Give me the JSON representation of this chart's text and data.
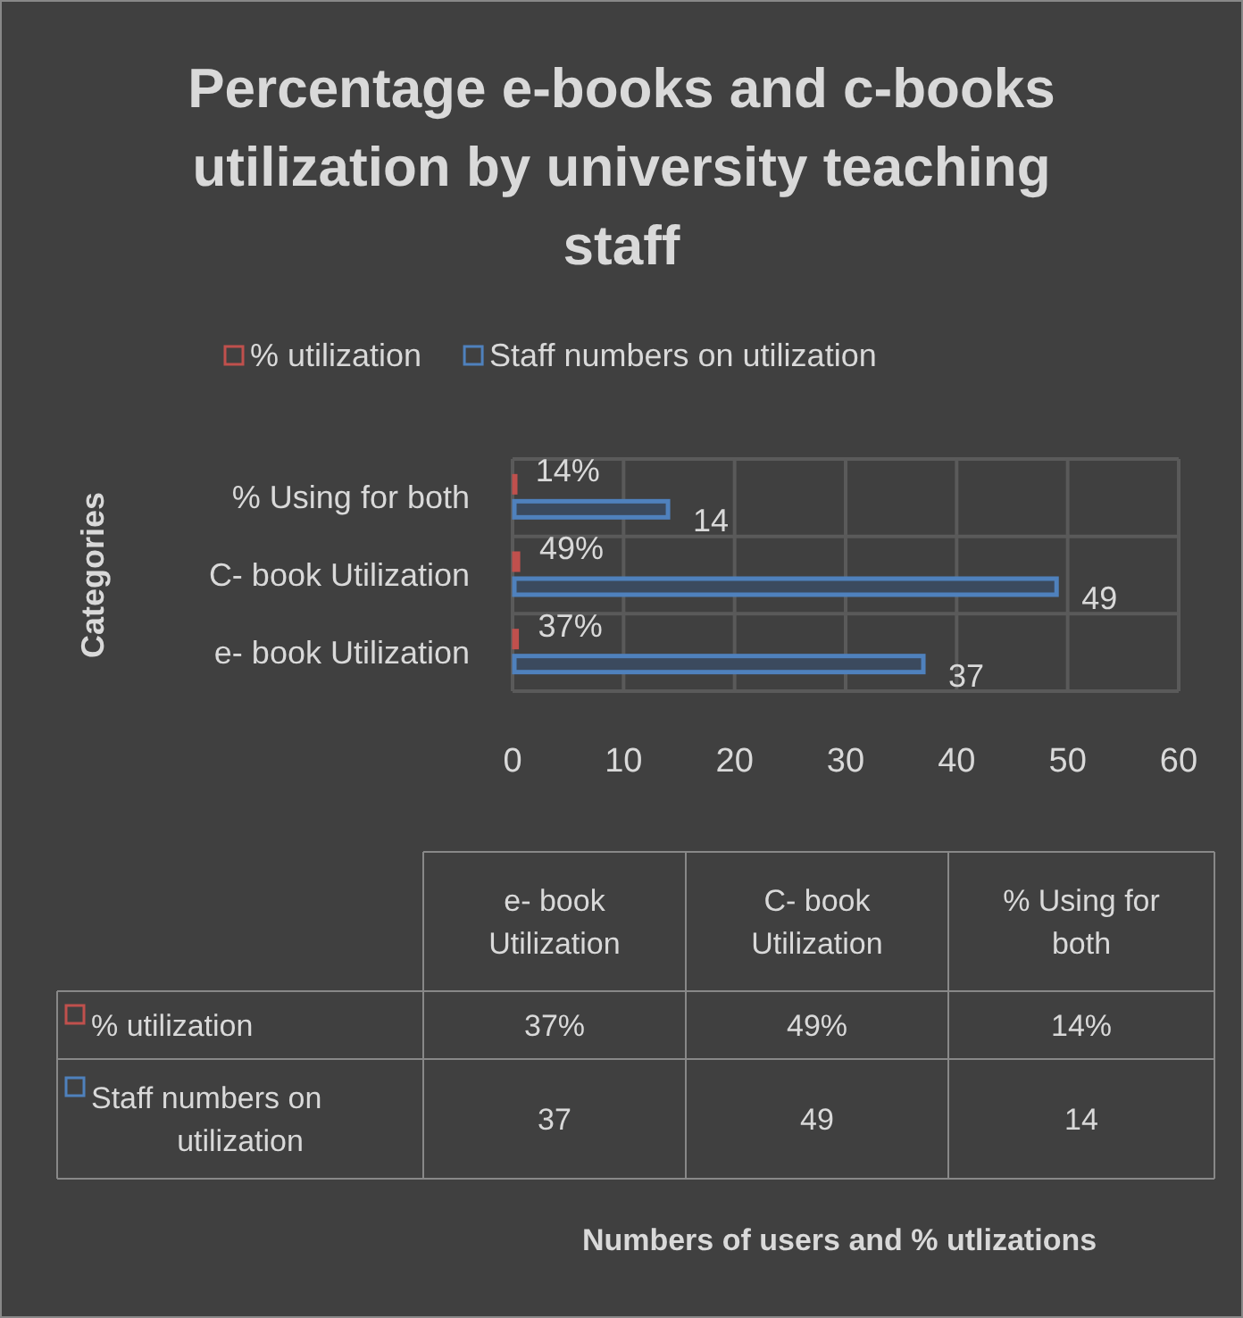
{
  "chart_data": {
    "type": "bar",
    "orientation": "horizontal",
    "title": "Percentage e-books and c-books utilization by university teaching staff",
    "annotations": [
      "Numbers of users and % utlizations"
    ],
    "ylabel": "Categories",
    "categories": [
      "% Using for both",
      "C- book Utilization",
      "e- book Utilization"
    ],
    "series": [
      {
        "name": "% utilization",
        "color": "#c0504d",
        "values": [
          0.14,
          0.49,
          0.37
        ],
        "value_labels": [
          "14%",
          "49%",
          "37%"
        ]
      },
      {
        "name": "Staff numbers on utilization",
        "color": "#4f81bd",
        "values": [
          14,
          49,
          37
        ],
        "value_labels": [
          "14",
          "49",
          "37"
        ]
      }
    ],
    "xlim": [
      0,
      60
    ],
    "xticks": [
      0,
      10,
      20,
      30,
      40,
      50,
      60
    ],
    "grid": true,
    "legend": "top"
  }
}
